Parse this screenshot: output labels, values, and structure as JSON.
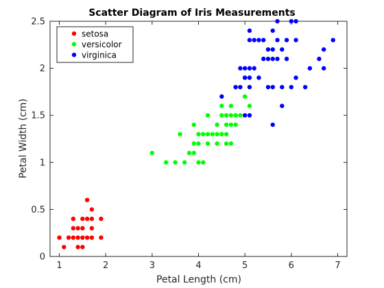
{
  "chart_data": {
    "type": "scatter",
    "title": "Scatter Diagram of Iris Measurements",
    "xlabel": "Petal Length (cm)",
    "ylabel": "Petal Width (cm)",
    "xlim": [
      0.8,
      7.2
    ],
    "ylim": [
      0,
      2.5
    ],
    "xticks": [
      1,
      2,
      3,
      4,
      5,
      6,
      7
    ],
    "yticks": [
      0,
      0.5,
      1,
      1.5,
      2,
      2.5
    ],
    "xtick_labels": [
      "1",
      "2",
      "3",
      "4",
      "5",
      "6",
      "7"
    ],
    "ytick_labels": [
      "0",
      "0.5",
      "1",
      "1.5",
      "2",
      "2.5"
    ],
    "grid": false,
    "legend_position": "top-left",
    "series": [
      {
        "name": "setosa",
        "color": "#ff0000",
        "points": [
          [
            1.0,
            0.2
          ],
          [
            1.1,
            0.1
          ],
          [
            1.2,
            0.2
          ],
          [
            1.3,
            0.2
          ],
          [
            1.3,
            0.3
          ],
          [
            1.3,
            0.4
          ],
          [
            1.4,
            0.1
          ],
          [
            1.4,
            0.2
          ],
          [
            1.4,
            0.3
          ],
          [
            1.5,
            0.1
          ],
          [
            1.5,
            0.2
          ],
          [
            1.5,
            0.3
          ],
          [
            1.5,
            0.4
          ],
          [
            1.6,
            0.2
          ],
          [
            1.6,
            0.4
          ],
          [
            1.6,
            0.6
          ],
          [
            1.7,
            0.2
          ],
          [
            1.7,
            0.3
          ],
          [
            1.7,
            0.4
          ],
          [
            1.7,
            0.5
          ],
          [
            1.9,
            0.2
          ],
          [
            1.9,
            0.4
          ]
        ]
      },
      {
        "name": "versicolor",
        "color": "#00ff00",
        "points": [
          [
            3.0,
            1.1
          ],
          [
            3.3,
            1.0
          ],
          [
            3.5,
            1.0
          ],
          [
            3.6,
            1.3
          ],
          [
            3.7,
            1.0
          ],
          [
            3.8,
            1.1
          ],
          [
            3.9,
            1.1
          ],
          [
            3.9,
            1.2
          ],
          [
            3.9,
            1.4
          ],
          [
            4.0,
            1.0
          ],
          [
            4.0,
            1.2
          ],
          [
            4.0,
            1.3
          ],
          [
            4.1,
            1.0
          ],
          [
            4.1,
            1.3
          ],
          [
            4.2,
            1.2
          ],
          [
            4.2,
            1.3
          ],
          [
            4.3,
            1.3
          ],
          [
            4.4,
            1.2
          ],
          [
            4.4,
            1.3
          ],
          [
            4.4,
            1.4
          ],
          [
            4.5,
            1.3
          ],
          [
            4.5,
            1.5
          ],
          [
            4.5,
            1.6
          ],
          [
            4.6,
            1.3
          ],
          [
            4.6,
            1.4
          ],
          [
            4.6,
            1.5
          ],
          [
            4.7,
            1.2
          ],
          [
            4.7,
            1.4
          ],
          [
            4.7,
            1.5
          ],
          [
            4.7,
            1.6
          ],
          [
            4.8,
            1.4
          ],
          [
            4.8,
            1.8
          ],
          [
            4.9,
            1.5
          ],
          [
            5.0,
            1.7
          ],
          [
            5.1,
            1.6
          ],
          [
            4.2,
            1.5
          ],
          [
            4.6,
            1.2
          ],
          [
            4.8,
            1.5
          ]
        ]
      },
      {
        "name": "virginica",
        "color": "#0000ff",
        "points": [
          [
            4.5,
            1.7
          ],
          [
            4.8,
            1.8
          ],
          [
            4.9,
            1.8
          ],
          [
            4.9,
            2.0
          ],
          [
            5.0,
            1.5
          ],
          [
            5.0,
            1.9
          ],
          [
            5.0,
            2.0
          ],
          [
            5.1,
            1.5
          ],
          [
            5.1,
            1.8
          ],
          [
            5.1,
            1.9
          ],
          [
            5.1,
            2.0
          ],
          [
            5.1,
            2.3
          ],
          [
            5.1,
            2.4
          ],
          [
            5.2,
            2.0
          ],
          [
            5.2,
            2.3
          ],
          [
            5.3,
            1.9
          ],
          [
            5.3,
            2.3
          ],
          [
            5.4,
            2.1
          ],
          [
            5.4,
            2.3
          ],
          [
            5.5,
            1.8
          ],
          [
            5.5,
            2.1
          ],
          [
            5.6,
            1.4
          ],
          [
            5.6,
            1.8
          ],
          [
            5.6,
            2.1
          ],
          [
            5.6,
            2.2
          ],
          [
            5.6,
            2.4
          ],
          [
            5.7,
            2.1
          ],
          [
            5.7,
            2.3
          ],
          [
            5.7,
            2.5
          ],
          [
            5.8,
            1.6
          ],
          [
            5.8,
            1.8
          ],
          [
            5.8,
            2.2
          ],
          [
            5.9,
            2.1
          ],
          [
            5.9,
            2.3
          ],
          [
            6.0,
            1.8
          ],
          [
            6.0,
            2.5
          ],
          [
            6.1,
            1.9
          ],
          [
            6.1,
            2.3
          ],
          [
            6.1,
            2.5
          ],
          [
            6.3,
            1.8
          ],
          [
            6.4,
            2.0
          ],
          [
            6.6,
            2.1
          ],
          [
            6.7,
            2.0
          ],
          [
            6.7,
            2.2
          ],
          [
            6.9,
            2.3
          ],
          [
            5.5,
            2.2
          ],
          [
            5.0,
            1.9
          ],
          [
            5.4,
            2.1
          ]
        ]
      }
    ]
  }
}
